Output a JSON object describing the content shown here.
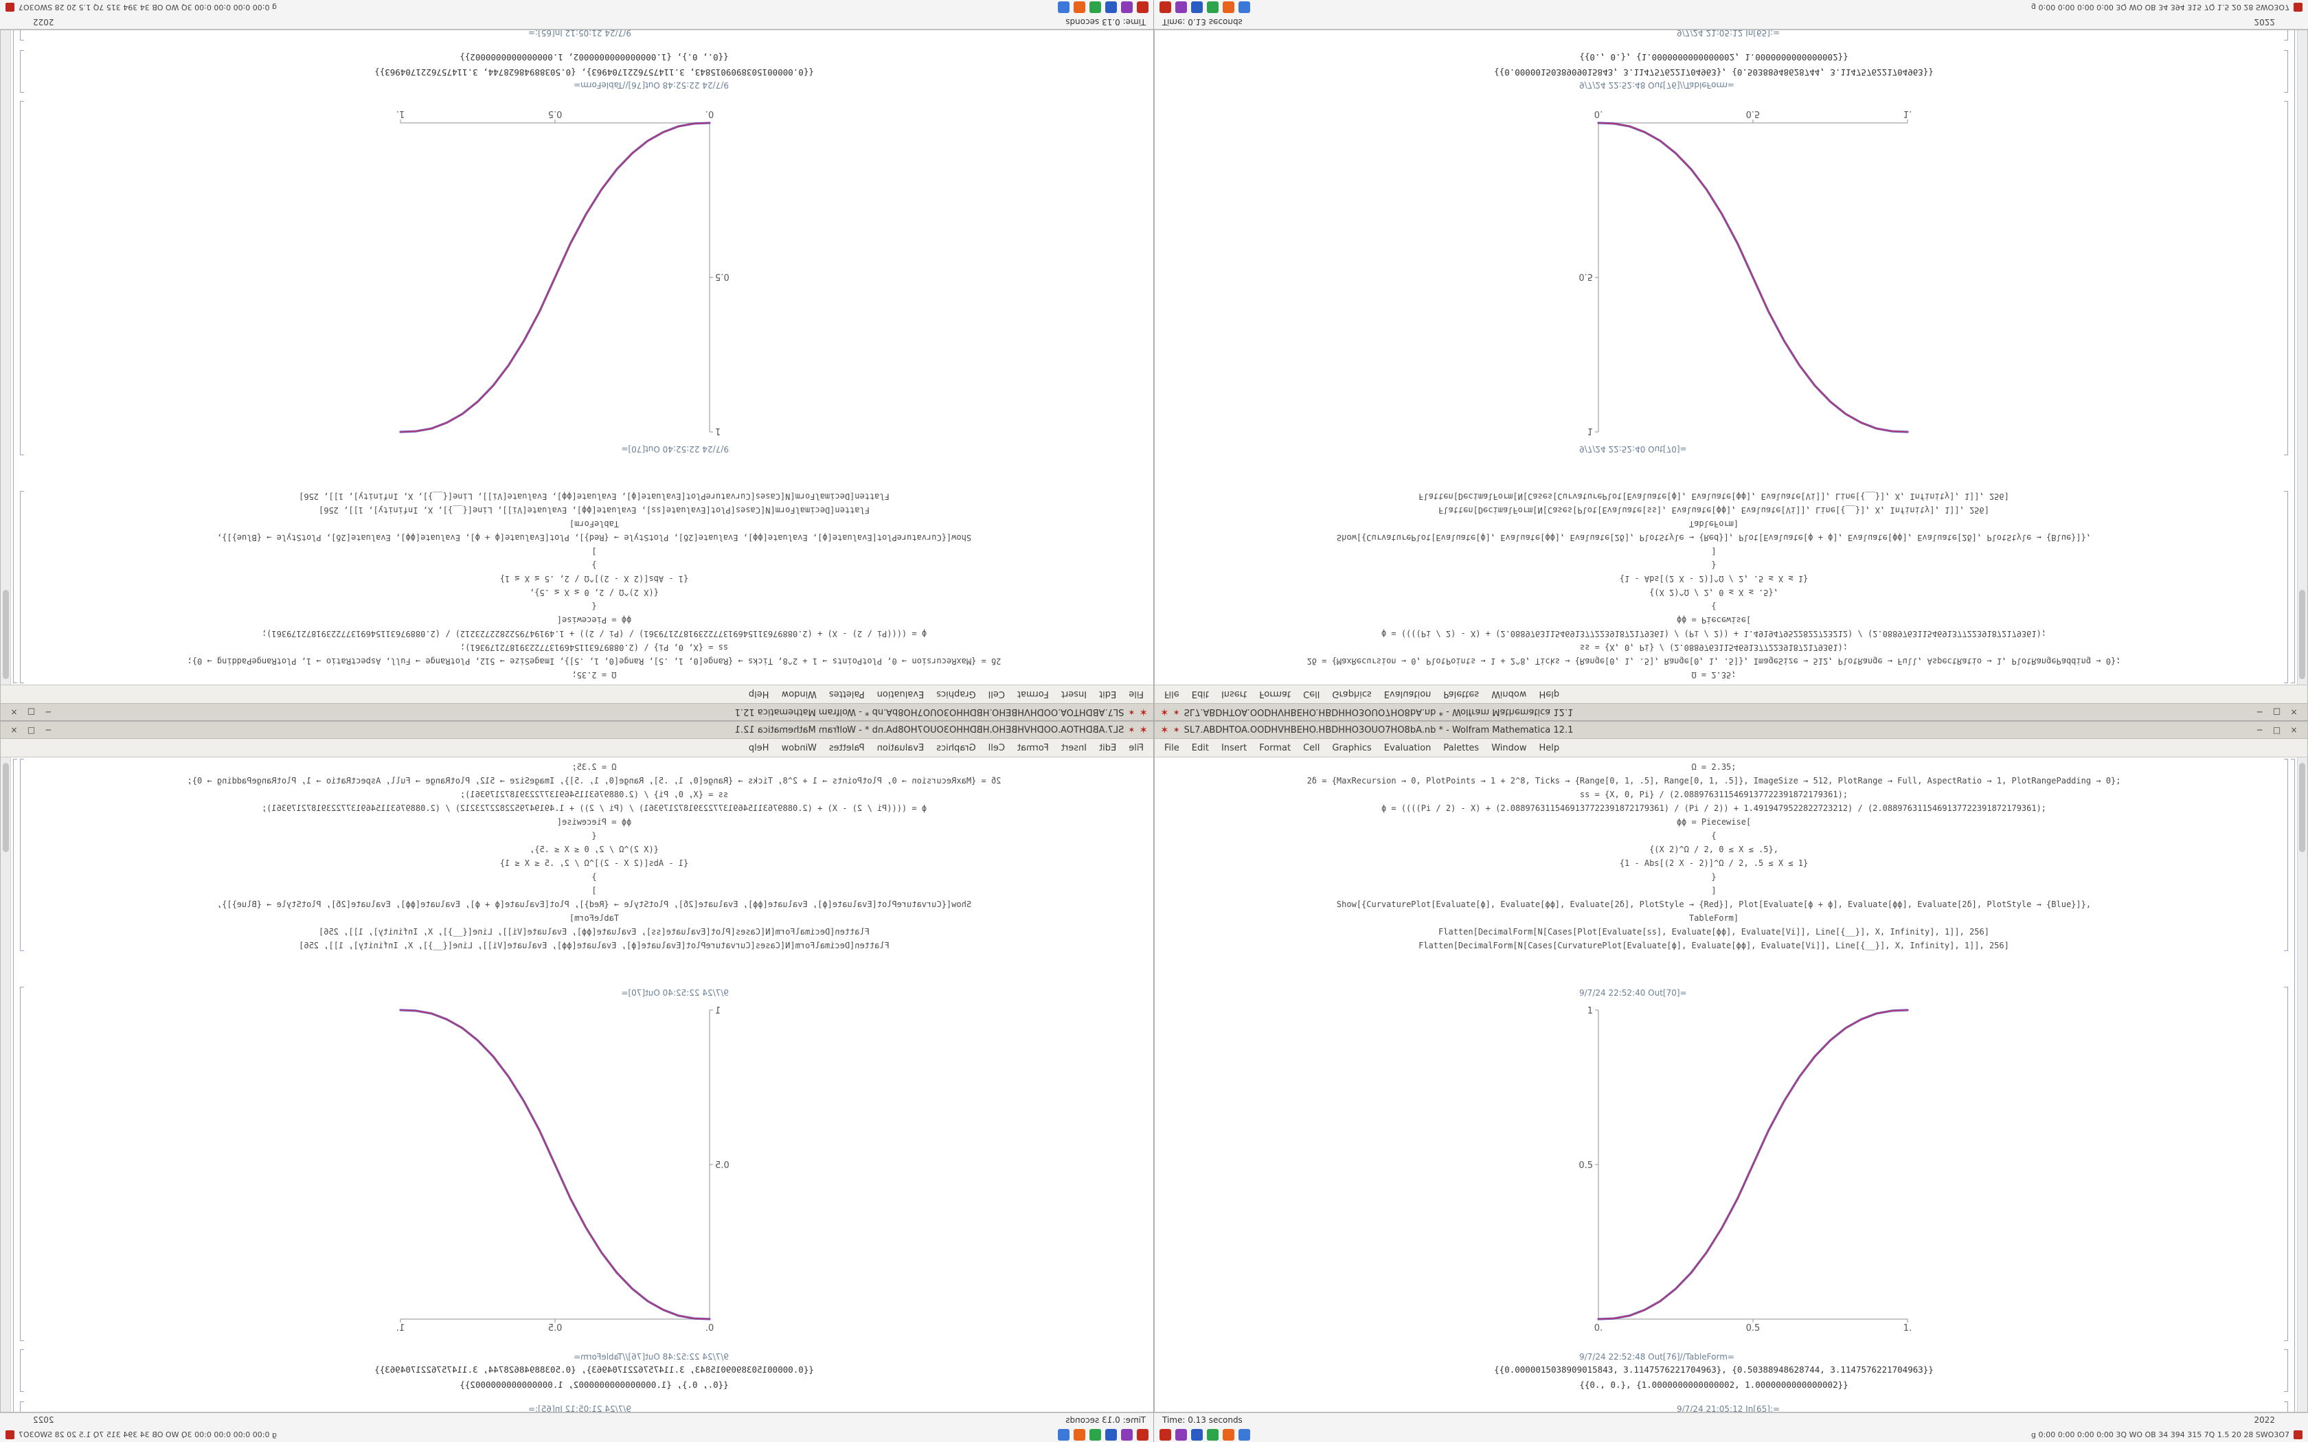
{
  "window": {
    "title": "SL7.ABDHTOA.OODHVHBEHO.HBDHHO3OUO7HO8bA.nb * - Wolfram Mathematica 12.1",
    "window_buttons": [
      "−",
      "□",
      "×"
    ],
    "menu_items": [
      "File",
      "Edit",
      "Insert",
      "Format",
      "Cell",
      "Graphics",
      "Evaluation",
      "Palettes",
      "Window",
      "Help"
    ],
    "code_lines": [
      "Ω = 2.35;",
      "2δ = {MaxRecursion → 0, PlotPoints → 1 + 2^8, Ticks → {Range[0, 1, .5], Range[0, 1, .5]}, ImageSize → 512, PlotRange → Full, AspectRatio → 1, PlotRangePadding → 0};",
      "ss = {X, 0, Pi} / (2.0889763115469137722391872179361);",
      "ϕ = ((((Pi / 2) - X) + (2.0889763115469137722391872179361) / (Pi / 2)) + 1.4919479522822723212) / (2.0889763115469137722391872179361);",
      "ϕϕ = Piecewise[",
      "{",
      "{(X 2)^Ω / 2, 0 ≤ X ≤ .5},",
      "{1 - Abs[(2 X - 2)]^Ω / 2, .5 ≤ X ≤ 1}",
      "}",
      "]",
      "Show[{CurvaturePlot[Evaluate[ϕ], Evaluate[ϕϕ], Evaluate[2δ], PlotStyle → {Red}], Plot[Evaluate[ϕ + ϕ], Evaluate[ϕϕ], Evaluate[2δ], PlotStyle → {Blue}]},",
      "TableForm]",
      "Flatten[DecimalForm[N[Cases[Plot[Evaluate[ss], Evaluate[ϕϕ], Evaluate[Vi]], Line[{__}], X, Infinity], 1]], 256]",
      "Flatten[DecimalForm[N[Cases[CurvaturePlot[Evaluate[ϕ], Evaluate[ϕϕ], Evaluate[Vi]], Line[{__}], X, Infinity], 1]], 256]"
    ],
    "out1_label": "9/7/24 22:52:40 Out[70]=",
    "out2_label": "9/7/24 22:52:48 Out[76]//TableForm=",
    "table_rows": [
      "{{0.0000015038909015843, 3.1147576221704963}, {0.50388948628744, 3.1147576221704963}}",
      "{{0., 0.}, {1.0000000000000002, 1.0000000000000002}}"
    ],
    "next_in_label": "9/7/24 21:05:12 In[65]:="
  },
  "statusbar": {
    "time_text": "Time: 0.13 seconds",
    "right_text": "2022",
    "tray_icons": [
      {
        "name": "tray-icon-red-badge",
        "color": "#c42b1c"
      },
      {
        "name": "tray-icon-purple-app",
        "color": "#8a3bb8"
      },
      {
        "name": "tray-icon-blue-app",
        "color": "#2b5cc4"
      },
      {
        "name": "tray-icon-green-app",
        "color": "#2ba44a"
      },
      {
        "name": "tray-icon-orange-app",
        "color": "#e8641a"
      },
      {
        "name": "tray-icon-skyblue-app",
        "color": "#3b78d8"
      }
    ],
    "status_text": "g 0:00 0:00 0:00 0:00 3Q WO OB 34 394 315 7Q 1.5 20 28 SWO3O7"
  },
  "chart_data": {
    "type": "line",
    "title": "",
    "xlabel": "",
    "ylabel": "",
    "xlim": [
      0,
      1
    ],
    "ylim": [
      0,
      1
    ],
    "x_tick_labels": [
      "0.",
      "0.5",
      "1."
    ],
    "y_tick_labels": [
      "0.5",
      "1"
    ],
    "x": [
      0,
      0.05,
      0.1,
      0.15,
      0.2,
      0.25,
      0.3,
      0.35,
      0.4,
      0.45,
      0.5,
      0.55,
      0.6,
      0.65,
      0.7,
      0.75,
      0.8,
      0.85,
      0.9,
      0.95,
      1
    ],
    "y": [
      0,
      0.002,
      0.011,
      0.03,
      0.058,
      0.098,
      0.15,
      0.216,
      0.296,
      0.39,
      0.5,
      0.61,
      0.704,
      0.784,
      0.85,
      0.902,
      0.942,
      0.97,
      0.989,
      0.998,
      1
    ],
    "curve_colors": [
      "#4b3bd0",
      "#c43b4e"
    ],
    "grid": "off",
    "legend": "none"
  }
}
